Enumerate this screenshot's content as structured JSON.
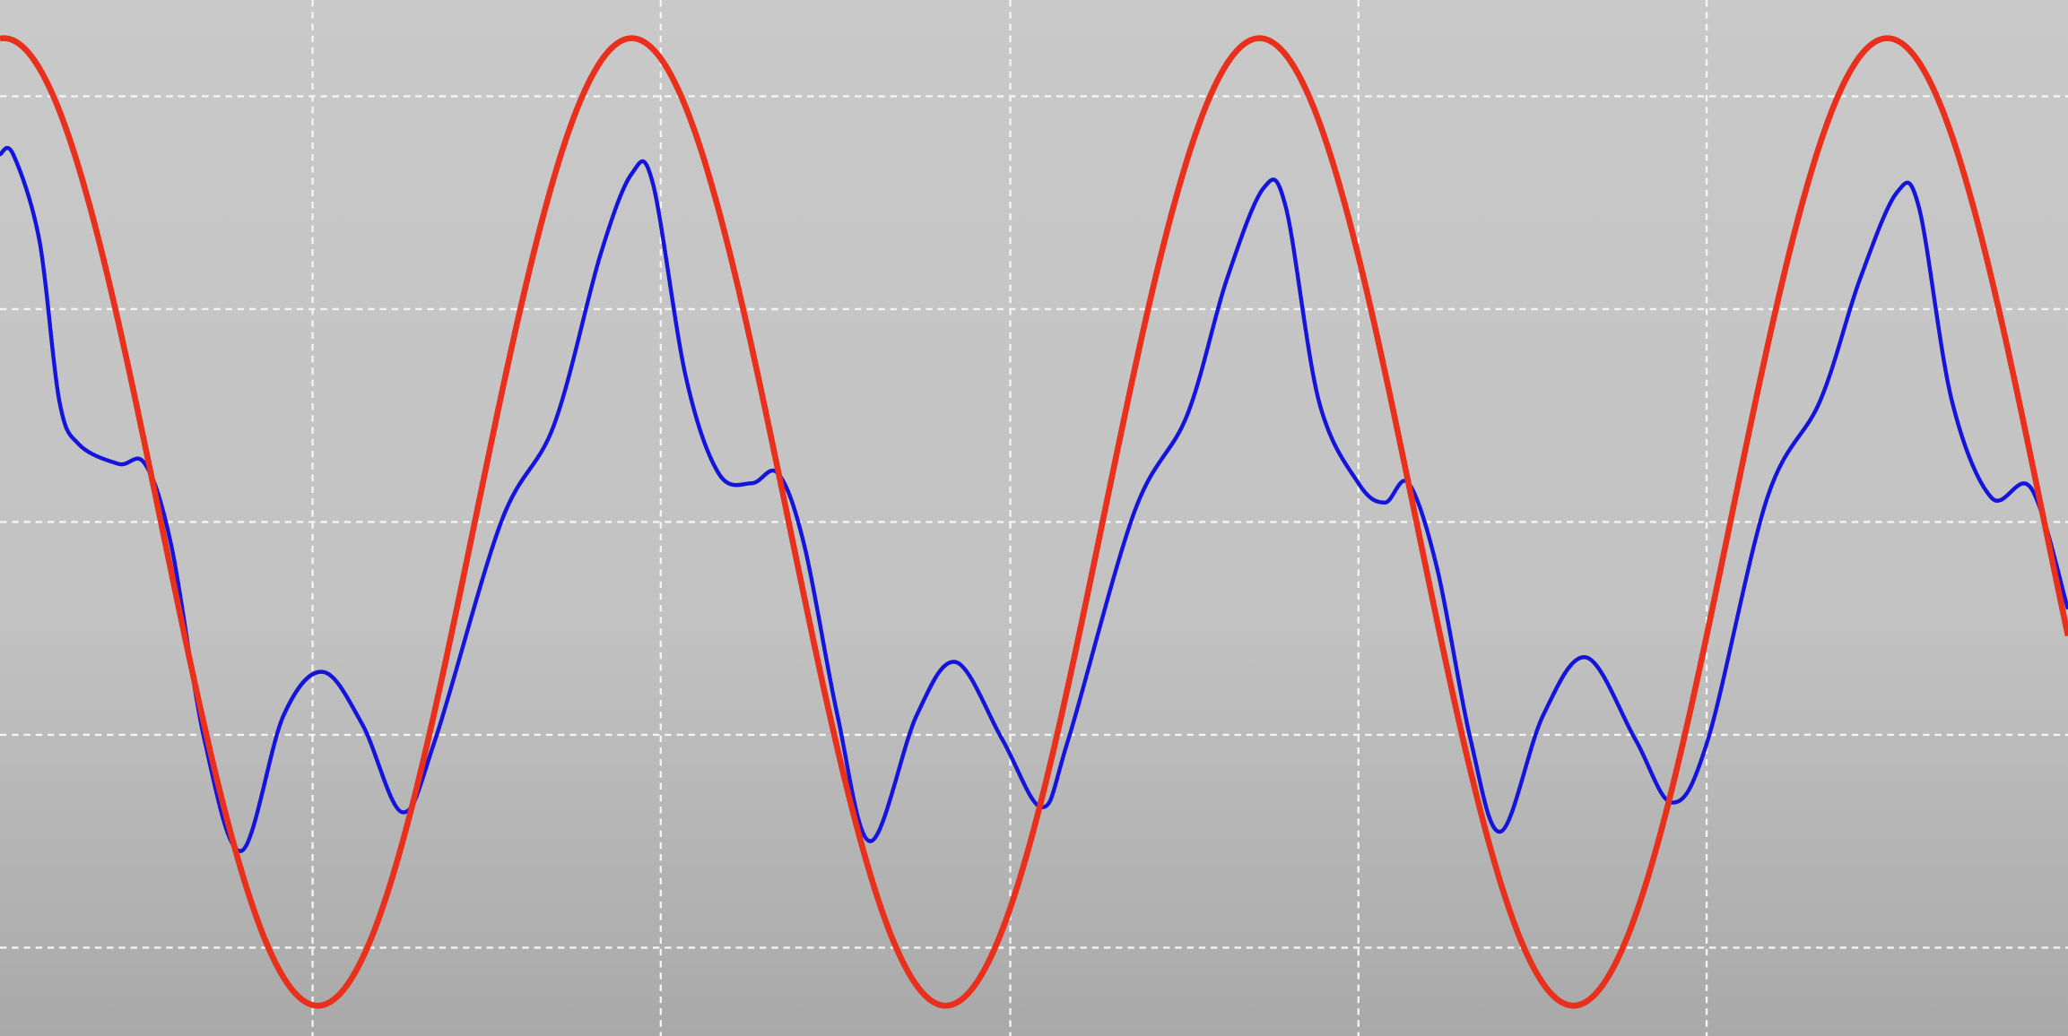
{
  "chart_data": {
    "type": "line",
    "grid": true,
    "grid_style": "dashed",
    "xlim": [
      0,
      1568
    ],
    "ylim": [
      -1.0,
      1.0
    ],
    "x_gridlines": [
      237,
      501,
      766,
      1030,
      1294
    ],
    "y_gridlines": [
      0.88,
      0.44,
      0.0,
      -0.44,
      -0.88
    ],
    "series": [
      {
        "color": "#e8301c",
        "period": 476,
        "phase_peak_x": 479,
        "amplitude": 1.0,
        "points": [
          [
            0,
            0.96
          ],
          [
            120,
            0.05
          ],
          [
            237,
            -1.0
          ],
          [
            360,
            0.05
          ],
          [
            479,
            1.0
          ],
          [
            600,
            0.05
          ],
          [
            717,
            -1.0
          ],
          [
            835,
            0.05
          ],
          [
            955,
            1.0
          ],
          [
            1070,
            0.05
          ],
          [
            1192,
            -1.0
          ],
          [
            1310,
            0.05
          ],
          [
            1434,
            1.0
          ],
          [
            1550,
            0.05
          ],
          [
            1568,
            -0.05
          ]
        ]
      },
      {
        "color": "#1414dd",
        "period": 476,
        "points": [
          [
            0,
            0.76
          ],
          [
            10,
            0.76
          ],
          [
            30,
            0.58
          ],
          [
            45,
            0.25
          ],
          [
            60,
            0.16
          ],
          [
            90,
            0.12
          ],
          [
            110,
            0.12
          ],
          [
            130,
            -0.05
          ],
          [
            155,
            -0.45
          ],
          [
            183,
            -0.68
          ],
          [
            215,
            -0.4
          ],
          [
            245,
            -0.31
          ],
          [
            275,
            -0.42
          ],
          [
            305,
            -0.6
          ],
          [
            330,
            -0.45
          ],
          [
            380,
            0.0
          ],
          [
            420,
            0.2
          ],
          [
            455,
            0.55
          ],
          [
            479,
            0.72
          ],
          [
            495,
            0.7
          ],
          [
            520,
            0.3
          ],
          [
            545,
            0.1
          ],
          [
            570,
            0.08
          ],
          [
            590,
            0.1
          ],
          [
            610,
            -0.05
          ],
          [
            635,
            -0.4
          ],
          [
            660,
            -0.66
          ],
          [
            695,
            -0.4
          ],
          [
            725,
            -0.29
          ],
          [
            760,
            -0.45
          ],
          [
            790,
            -0.59
          ],
          [
            810,
            -0.45
          ],
          [
            860,
            0.02
          ],
          [
            900,
            0.22
          ],
          [
            930,
            0.5
          ],
          [
            958,
            0.69
          ],
          [
            975,
            0.65
          ],
          [
            1000,
            0.25
          ],
          [
            1030,
            0.08
          ],
          [
            1050,
            0.04
          ],
          [
            1068,
            0.08
          ],
          [
            1090,
            -0.1
          ],
          [
            1115,
            -0.45
          ],
          [
            1138,
            -0.64
          ],
          [
            1170,
            -0.4
          ],
          [
            1203,
            -0.28
          ],
          [
            1240,
            -0.45
          ],
          [
            1268,
            -0.58
          ],
          [
            1295,
            -0.45
          ],
          [
            1340,
            0.05
          ],
          [
            1380,
            0.25
          ],
          [
            1410,
            0.5
          ],
          [
            1438,
            0.68
          ],
          [
            1455,
            0.65
          ],
          [
            1480,
            0.25
          ],
          [
            1510,
            0.05
          ],
          [
            1540,
            0.07
          ],
          [
            1568,
            -0.18
          ]
        ]
      }
    ]
  }
}
